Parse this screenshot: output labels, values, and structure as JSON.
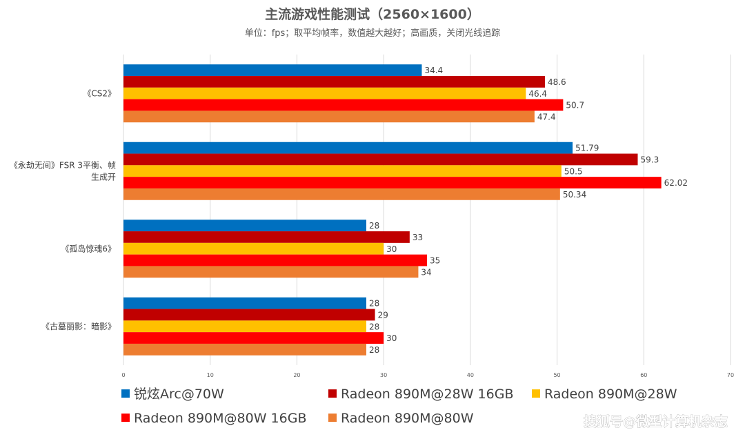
{
  "chart_data": {
    "type": "bar",
    "orientation": "horizontal",
    "title": "主流游戏性能测试（2560×1600）",
    "subtitle": "单位：fps；取平均帧率，数值越大越好；高画质，关闭光线追踪",
    "categories": [
      "《CS2》",
      "《永劫无间》FSR 3平衡、帧生成开",
      "《孤岛惊魂6》",
      "《古墓丽影：暗影》"
    ],
    "category_lines": [
      [
        "《CS2》"
      ],
      [
        "《永劫无间》FSR 3平衡、帧",
        "生成开"
      ],
      [
        "《孤岛惊魂6》"
      ],
      [
        "《古墓丽影：暗影》"
      ]
    ],
    "series": [
      {
        "name": "锐炫Arc@70W",
        "color": "#0070C0",
        "values": [
          34.4,
          51.79,
          28,
          28
        ],
        "labels": [
          "34.4",
          "51.79",
          "28",
          "28"
        ]
      },
      {
        "name": "Radeon 890M@28W 16GB",
        "color": "#C00000",
        "values": [
          48.6,
          59.3,
          33,
          29
        ],
        "labels": [
          "48.6",
          "59.3",
          "33",
          "29"
        ]
      },
      {
        "name": "Radeon 890M@28W",
        "color": "#FFC000",
        "values": [
          46.4,
          50.5,
          30,
          28
        ],
        "labels": [
          "46.4",
          "50.5",
          "30",
          "28"
        ]
      },
      {
        "name": "Radeon 890M@80W 16GB",
        "color": "#FF0000",
        "values": [
          50.7,
          62.02,
          35,
          30
        ],
        "labels": [
          "50.7",
          "62.02",
          "35",
          "30"
        ]
      },
      {
        "name": "Radeon 890M@80W",
        "color": "#ED7D31",
        "values": [
          47.4,
          50.34,
          34,
          28
        ],
        "labels": [
          "47.4",
          "50.34",
          "34",
          "28"
        ]
      }
    ],
    "xlim": [
      0,
      70
    ],
    "xticks": [
      0,
      10,
      20,
      30,
      40,
      50,
      60,
      70
    ],
    "grid": true,
    "legend": "bottom"
  },
  "watermark": "搜狐号@微型计算机杂志"
}
